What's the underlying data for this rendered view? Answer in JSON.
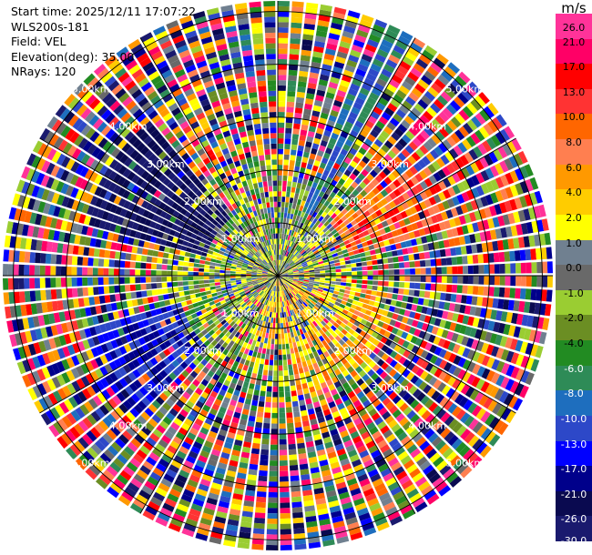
{
  "header": {
    "start_time": "Start time: 2025/12/11 17:07:22",
    "instrument": "WLS200s-181",
    "field": "Field: VEL",
    "elevation": "Elevation(deg): 35.00",
    "nrays": "NRays: 120"
  },
  "chart_data": {
    "type": "heatmap",
    "projection": "polar-ppi",
    "rays": 120,
    "range_rings": [
      "1.00km",
      "2.00km",
      "3.00km",
      "4.00km",
      "5.00km"
    ],
    "range_ring_values": [
      1,
      2,
      3,
      4,
      5
    ],
    "max_range_km": 5.2,
    "spokes_deg": [
      0,
      30,
      60,
      90,
      120,
      150,
      180,
      210,
      240,
      270,
      300,
      330
    ],
    "colorbar": {
      "unit": "m/s",
      "ticks": [
        "26.0",
        "21.0",
        "17.0",
        "13.0",
        "10.0",
        "8.0",
        "6.0",
        "4.0",
        "2.0",
        "1.0",
        "0.0",
        "-1.0",
        "-2.0",
        "-4.0",
        "-6.0",
        "-8.0",
        "-10.0",
        "-13.0",
        "-17.0",
        "-21.0",
        "-26.0",
        "-30.0"
      ],
      "colors": [
        "#ff3399",
        "#ff0066",
        "#ff0000",
        "#ff3333",
        "#ff6600",
        "#ff7f50",
        "#ff9900",
        "#ffcc00",
        "#ffff00",
        "#708090",
        "#696969",
        "#9acd32",
        "#6b8e23",
        "#228b22",
        "#2e8b57",
        "#1e6ebe",
        "#2d48c8",
        "#0000ff",
        "#00008b",
        "#0a0a50",
        "#1a1a6e"
      ]
    },
    "dominant_sectors": [
      {
        "azimuth_range_deg": [
          20,
          30
        ],
        "range_km": [
          0,
          5.2
        ],
        "value_class": "-8.0 to -6.0"
      },
      {
        "azimuth_range_deg": [
          45,
          75
        ],
        "range_km": [
          1.3,
          3.4
        ],
        "value_class": "6.0 to 17.0"
      },
      {
        "azimuth_range_deg": [
          285,
          320
        ],
        "range_km": [
          1.4,
          3.8
        ],
        "value_class": "-30.0 to -21.0"
      },
      {
        "azimuth_range_deg": [
          225,
          255
        ],
        "range_km": [
          1.8,
          3.8
        ],
        "value_class": "-17.0 to -13.0"
      },
      {
        "azimuth_range_deg": [
          100,
          170
        ],
        "range_km": [
          0.4,
          2.3
        ],
        "value_class": "2.0 to 13.0"
      },
      {
        "azimuth_range_deg": [
          330,
          30
        ],
        "range_km": [
          0,
          1.5
        ],
        "value_class": "-2.0 to 2.0"
      }
    ]
  }
}
